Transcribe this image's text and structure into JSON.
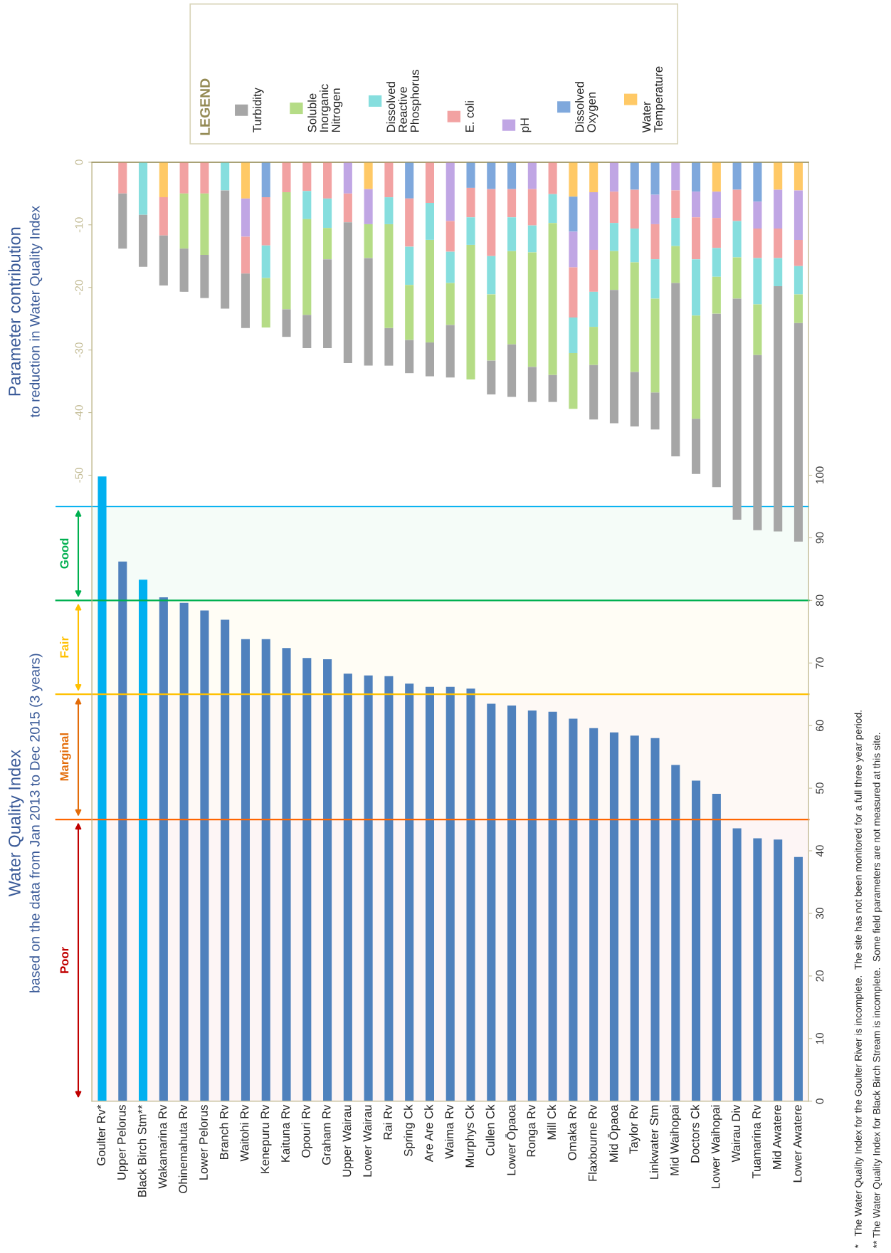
{
  "chart_data": {
    "type": "bar",
    "title": "Water Quality Index",
    "subtitle": "based on the data from Jan 2013 to Dec 2015 (3 years)",
    "y2label": "Parameter contribution\nto reduction in Water Quality Index",
    "legend_title": "LEGEND",
    "legend": "top",
    "stacked": true,
    "categories": [
      "Goulter Rv*",
      "Upper Pelorus",
      "Black Birch Stm**",
      "Wakamarina Rv",
      "Ohinemahuta Rv",
      "Lower Pelorus",
      "Branch Rv",
      "Waitohi Rv",
      "Kenepuru Rv",
      "Kaituna Rv",
      "Opouri Rv",
      "Graham Rv",
      "Upper Wairau",
      "Lower Wairau",
      "Rai Rv",
      "Spring Ck",
      "Are Are Ck",
      "Waima Rv",
      "Murphys Ck",
      "Cullen Ck",
      "Lower Ōpaoa",
      "Ronga Rv",
      "Mill Ck",
      "Omaka Rv",
      "Flaxbourne Rv",
      "Mid Ōpaoa",
      "Taylor Rv",
      "Linkwater Stm",
      "Mid Waihopai",
      "Doctors Ck",
      "Lower Waihopai",
      "Wairau Div",
      "Tuamarina Rv",
      "Mid Awatere",
      "Lower Awatere"
    ],
    "ylim": [
      0,
      150
    ],
    "yticks": [
      0,
      10,
      20,
      30,
      40,
      50,
      60,
      70,
      80,
      90,
      100
    ],
    "y2lim": [
      -150,
      0
    ],
    "y2ticks": [
      0,
      -10,
      -20,
      -30,
      -40,
      -50
    ],
    "series": [
      {
        "axis": "y",
        "colors": [
          "#00b0f0",
          "#4f81bd",
          "#00b0f0",
          "#4f81bd",
          "#4f81bd",
          "#4f81bd",
          "#4f81bd",
          "#4f81bd",
          "#4f81bd",
          "#4f81bd",
          "#4f81bd",
          "#4f81bd",
          "#4f81bd",
          "#4f81bd",
          "#4f81bd",
          "#4f81bd",
          "#4f81bd",
          "#4f81bd",
          "#4f81bd",
          "#4f81bd",
          "#4f81bd",
          "#4f81bd",
          "#4f81bd",
          "#4f81bd",
          "#4f81bd",
          "#4f81bd",
          "#4f81bd",
          "#4f81bd",
          "#4f81bd",
          "#4f81bd",
          "#4f81bd",
          "#4f81bd",
          "#4f81bd",
          "#4f81bd",
          "#4f81bd"
        ],
        "values": [
          99.8,
          86.2,
          83.3,
          80.5,
          79.6,
          78.4,
          76.9,
          73.8,
          73.8,
          72.4,
          70.8,
          70.6,
          68.3,
          68.0,
          67.9,
          66.7,
          66.2,
          66.2,
          65.9,
          63.5,
          63.2,
          62.4,
          62.2,
          61.1,
          59.6,
          58.9,
          58.4,
          58.0,
          53.7,
          51.2,
          49.1,
          43.6,
          42.0,
          41.8,
          39.0
        ]
      },
      {
        "axis": "y2",
        "name": "Water\nTemperature",
        "color": "#ffc966",
        "values": [
          null,
          null,
          null,
          -5.6,
          null,
          null,
          null,
          -5.8,
          null,
          null,
          null,
          null,
          null,
          -4.3,
          null,
          null,
          null,
          null,
          null,
          null,
          null,
          null,
          null,
          -5.5,
          -4.8,
          null,
          null,
          null,
          null,
          null,
          -4.7,
          null,
          null,
          -4.4,
          -4.5
        ]
      },
      {
        "axis": "y2",
        "name": "Dissolved\nOxygen",
        "color": "#7fa8dc",
        "values": [
          null,
          null,
          null,
          null,
          null,
          null,
          null,
          null,
          -5.6,
          null,
          null,
          null,
          null,
          null,
          null,
          -5.8,
          null,
          null,
          -4.1,
          -4.3,
          -4.3,
          null,
          null,
          -5.6,
          null,
          null,
          -4.4,
          -5.2,
          null,
          -4.7,
          null,
          -4.4,
          -6.3,
          null,
          null
        ]
      },
      {
        "axis": "y2",
        "name": "pH",
        "color": "#c0a6e4",
        "values": [
          null,
          null,
          null,
          null,
          null,
          null,
          null,
          -6.1,
          null,
          null,
          null,
          null,
          -5.0,
          -5.6,
          null,
          null,
          null,
          -9.4,
          null,
          null,
          null,
          -4.3,
          null,
          -5.7,
          -9.2,
          -4.7,
          null,
          -4.7,
          -4.5,
          -4.1,
          -4.2,
          null,
          -4.3,
          -6.2,
          -7.9
        ]
      },
      {
        "axis": "y2",
        "name": "E. coli",
        "color": "#f2a2a2",
        "values": [
          null,
          -5.0,
          null,
          -6.1,
          -5.0,
          -5.0,
          null,
          -5.9,
          -7.7,
          -4.8,
          -4.6,
          -5.8,
          -4.6,
          null,
          -5.6,
          -7.7,
          -6.5,
          -4.9,
          -4.7,
          -10.7,
          -4.5,
          -5.8,
          -5.1,
          -8.0,
          -6.7,
          -5.0,
          -6.2,
          -5.6,
          -4.4,
          -6.7,
          -4.8,
          -5.0,
          -4.7,
          -4.7,
          -4.2
        ]
      },
      {
        "axis": "y2",
        "name": "Dissolved\nReactive\nPhosphorus",
        "color": "#86dede",
        "values": [
          null,
          null,
          -8.4,
          null,
          null,
          null,
          -4.5,
          null,
          -5.2,
          null,
          -4.5,
          -4.7,
          null,
          null,
          -4.3,
          -6.1,
          -5.9,
          -5.0,
          -4.4,
          -6.1,
          -5.4,
          -4.3,
          -4.6,
          -5.7,
          -5.6,
          -4.5,
          -5.4,
          -6.3,
          -4.5,
          -9.0,
          -4.6,
          -5.8,
          -7.4,
          -4.5,
          -4.5
        ]
      },
      {
        "axis": "y2",
        "name": "Soluble\nInorganic\nNitrogen",
        "color": "#b5dc86",
        "values": [
          null,
          null,
          null,
          null,
          -8.8,
          -9.8,
          null,
          null,
          -7.9,
          -18.7,
          -15.3,
          -5.0,
          null,
          -5.4,
          -16.6,
          -8.8,
          -16.4,
          -6.7,
          -21.5,
          -10.6,
          -14.9,
          -18.3,
          -24.3,
          -8.9,
          -6.1,
          -6.2,
          -17.5,
          -15.0,
          -5.9,
          -16.5,
          -5.9,
          -6.6,
          -8.1,
          null,
          -4.6
        ]
      },
      {
        "axis": "y2",
        "name": "Turbidity",
        "color": "#a6a6a6",
        "values": [
          null,
          -8.8,
          -8.3,
          -8.0,
          -6.9,
          -6.9,
          -18.9,
          -8.7,
          null,
          -4.4,
          -5.3,
          -14.2,
          -22.5,
          -17.2,
          -6.0,
          -5.3,
          -5.4,
          -8.4,
          null,
          -5.4,
          -8.4,
          -5.6,
          -4.3,
          null,
          -8.7,
          -21.3,
          -8.7,
          -5.9,
          -27.7,
          -8.8,
          -27.7,
          -35.3,
          -28.0,
          -39.2,
          -34.9
        ]
      }
    ],
    "ref_lines": [
      {
        "axis": "y",
        "value": 95,
        "color": "#00b0f0"
      },
      {
        "axis": "y",
        "value": 80,
        "color": "#00b050"
      },
      {
        "axis": "y",
        "value": 65,
        "color": "#ffc000"
      },
      {
        "axis": "y",
        "value": 45,
        "color": "#ff6600"
      }
    ],
    "bands": [
      {
        "axis": "y",
        "from": 80,
        "to": 95,
        "label": "Good",
        "color": "#00b050"
      },
      {
        "axis": "y",
        "from": 65,
        "to": 80,
        "label": "Fair",
        "color": "#ffc000"
      },
      {
        "axis": "y",
        "from": 45,
        "to": 65,
        "label": "Marginal",
        "color": "#e36c09"
      },
      {
        "axis": "y",
        "from": 0,
        "to": 45,
        "label": "Poor",
        "color": "#c00000"
      }
    ],
    "annotations": [
      "*   The Water Quality Index for the Goulter River is incomplete.  The site has not been monitored for a full three year period.",
      "** The Water Quality Index for Black Birch Stream is incomplete.  Some field parameters are not measured at this site."
    ]
  }
}
